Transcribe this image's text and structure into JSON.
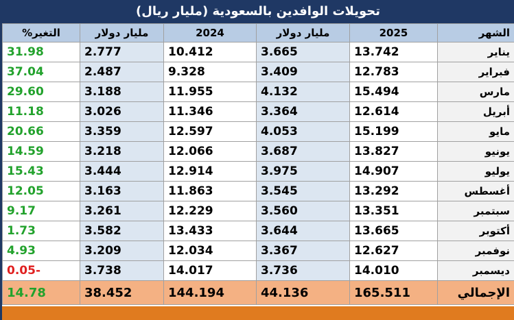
{
  "title": "تحويلات الوافدين بالسعودية (مليار ريال)",
  "table": {
    "header": [
      "الشهر",
      "2025",
      "مليار دولار",
      "2024",
      "مليار دولار",
      "التغير%"
    ],
    "rows": [
      [
        "يناير",
        "13.742",
        "3.665",
        "10.412",
        "2.777",
        "31.98"
      ],
      [
        "فبراير",
        "12.783",
        "3.409",
        "9.328",
        "2.487",
        "37.04"
      ],
      [
        "مارس",
        "15.494",
        "4.132",
        "11.955",
        "3.188",
        "29.60"
      ],
      [
        "أبريل",
        "12.614",
        "3.364",
        "11.346",
        "3.026",
        "11.18"
      ],
      [
        "مايو",
        "15.199",
        "4.053",
        "12.597",
        "3.359",
        "20.66"
      ],
      [
        "يونيو",
        "13.827",
        "3.687",
        "12.066",
        "3.218",
        "14.59"
      ],
      [
        "يوليو",
        "14.907",
        "3.975",
        "12.914",
        "3.444",
        "15.43"
      ],
      [
        "أغسطس",
        "13.292",
        "3.545",
        "11.863",
        "3.163",
        "12.05"
      ],
      [
        "سبتمبر",
        "13.351",
        "3.560",
        "12.229",
        "3.261",
        "9.17"
      ],
      [
        "أكتوبر",
        "13.665",
        "3.644",
        "13.433",
        "3.582",
        "1.73"
      ],
      [
        "نوفمبر",
        "12.627",
        "3.367",
        "12.034",
        "3.209",
        "4.93"
      ],
      [
        "ديسمبر",
        "14.010",
        "3.736",
        "14.017",
        "3.738",
        "-0.05"
      ]
    ],
    "total": [
      "الإجمالي",
      "165.511",
      "44.136",
      "144.194",
      "38.452",
      "14.78"
    ]
  }
}
